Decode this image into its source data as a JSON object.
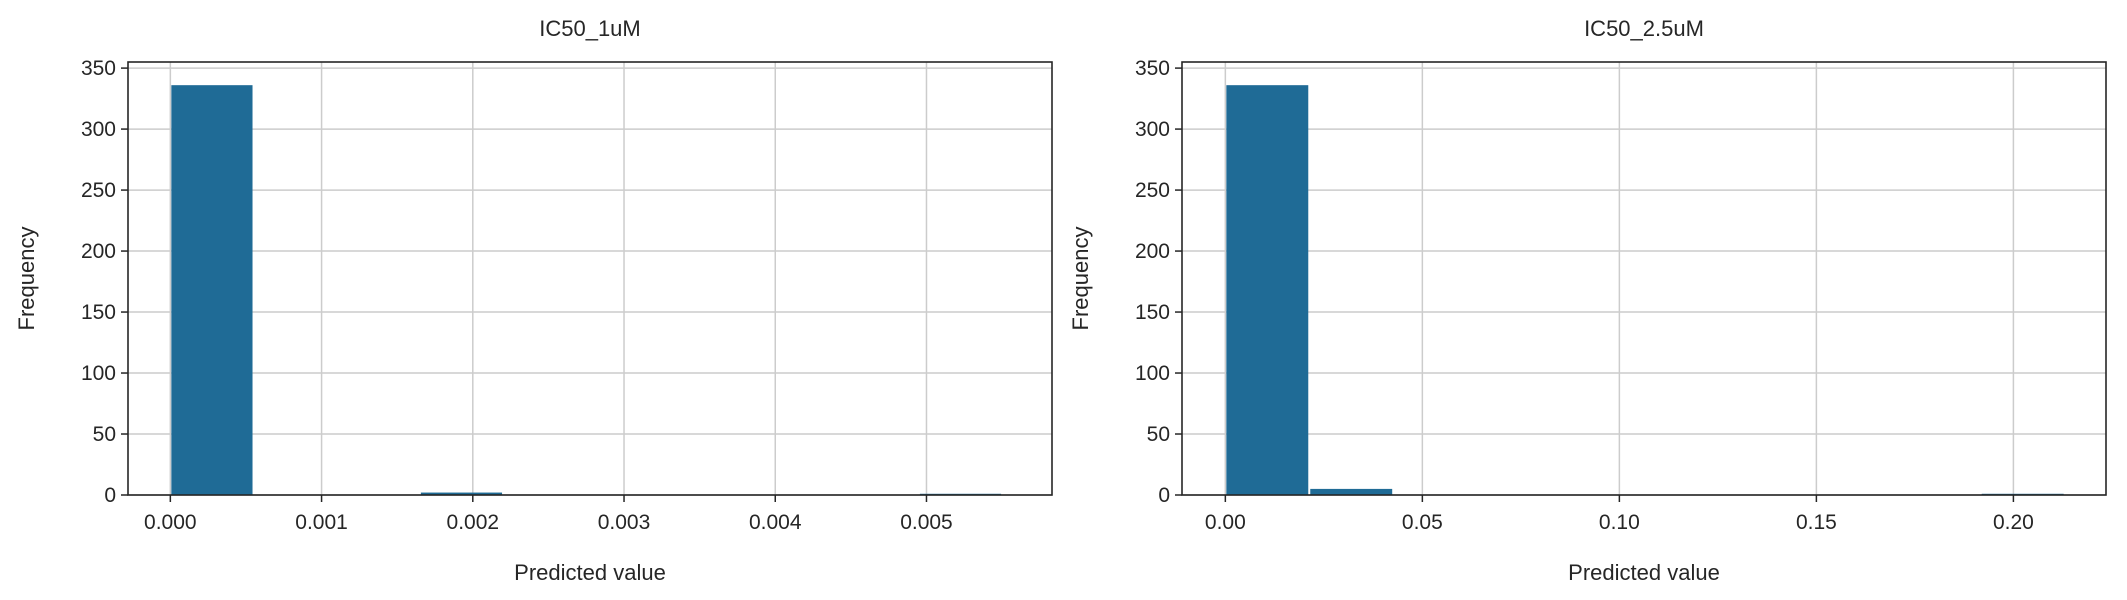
{
  "chart_data": [
    {
      "type": "bar",
      "title": "IC50_1uM",
      "xlabel": "Predicted value",
      "ylabel": "Frequency",
      "xlim": [
        -0.00028,
        0.00583
      ],
      "ylim": [
        0,
        355
      ],
      "xticks": [
        0,
        0.001,
        0.002,
        0.003,
        0.004,
        0.005
      ],
      "xtick_labels": [
        "0.000",
        "0.001",
        "0.002",
        "0.003",
        "0.004",
        "0.005"
      ],
      "yticks": [
        0,
        50,
        100,
        150,
        200,
        250,
        300,
        350
      ],
      "ytick_labels": [
        "0",
        "50",
        "100",
        "150",
        "200",
        "250",
        "300",
        "350"
      ],
      "grid": true,
      "bar_color": "#1f6b96",
      "bins": [
        {
          "x0": 0.0,
          "x1": 0.00055,
          "count": 336
        },
        {
          "x0": 0.00055,
          "x1": 0.0011,
          "count": 0
        },
        {
          "x0": 0.0011,
          "x1": 0.00165,
          "count": 0
        },
        {
          "x0": 0.00165,
          "x1": 0.0022,
          "count": 2
        },
        {
          "x0": 0.0022,
          "x1": 0.00275,
          "count": 0
        },
        {
          "x0": 0.00275,
          "x1": 0.0033,
          "count": 0
        },
        {
          "x0": 0.0033,
          "x1": 0.00385,
          "count": 0
        },
        {
          "x0": 0.00385,
          "x1": 0.0044,
          "count": 0
        },
        {
          "x0": 0.0044,
          "x1": 0.00495,
          "count": 0
        },
        {
          "x0": 0.00495,
          "x1": 0.0055,
          "count": 1
        }
      ]
    },
    {
      "type": "bar",
      "title": "IC50_2.5uM",
      "xlabel": "Predicted value",
      "ylabel": "Frequency",
      "xlim": [
        -0.011,
        0.2235
      ],
      "ylim": [
        0,
        355
      ],
      "xticks": [
        0,
        0.05,
        0.1,
        0.15,
        0.2
      ],
      "xtick_labels": [
        "0.00",
        "0.05",
        "0.10",
        "0.15",
        "0.20"
      ],
      "yticks": [
        0,
        50,
        100,
        150,
        200,
        250,
        300,
        350
      ],
      "ytick_labels": [
        "0",
        "50",
        "100",
        "150",
        "200",
        "250",
        "300",
        "350"
      ],
      "grid": true,
      "bar_color": "#1f6b96",
      "bins": [
        {
          "x0": 0.0,
          "x1": 0.0213,
          "count": 336
        },
        {
          "x0": 0.0213,
          "x1": 0.0426,
          "count": 5
        },
        {
          "x0": 0.0426,
          "x1": 0.0639,
          "count": 0
        },
        {
          "x0": 0.0639,
          "x1": 0.0852,
          "count": 0
        },
        {
          "x0": 0.0852,
          "x1": 0.1065,
          "count": 0
        },
        {
          "x0": 0.1065,
          "x1": 0.1278,
          "count": 0
        },
        {
          "x0": 0.1278,
          "x1": 0.1491,
          "count": 0
        },
        {
          "x0": 0.1491,
          "x1": 0.1704,
          "count": 0
        },
        {
          "x0": 0.1704,
          "x1": 0.1917,
          "count": 0
        },
        {
          "x0": 0.1917,
          "x1": 0.213,
          "count": 1
        }
      ]
    }
  ]
}
